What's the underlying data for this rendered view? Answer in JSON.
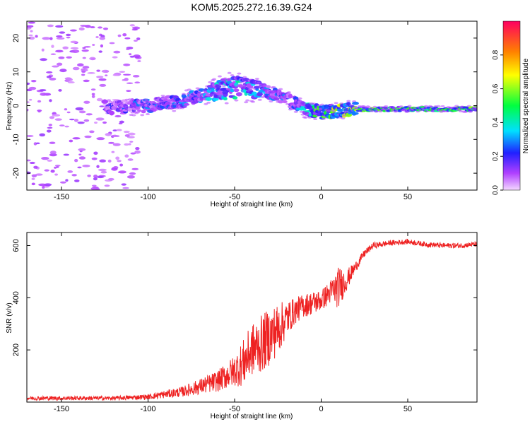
{
  "title": "KOM5.2025.272.16.39.G24",
  "colors": {
    "snr_line": "#ee2222",
    "axis": "#000000",
    "colormap": [
      "#f0c0ff",
      "#b040ff",
      "#2020ff",
      "#00e0ff",
      "#00ff20",
      "#ffff00",
      "#ff8000",
      "#ff0060"
    ]
  },
  "chart_data": [
    {
      "type": "heatmap",
      "title": "",
      "xlabel": "Height of straight line (km)",
      "ylabel": "Frequency (Hz)",
      "xlim": [
        -170,
        90
      ],
      "ylim": [
        -25,
        25
      ],
      "xticks": [
        -150,
        -100,
        -50,
        0,
        50
      ],
      "yticks": [
        -20,
        -10,
        0,
        10,
        20
      ],
      "xtick_labels": [
        "-150",
        "-100",
        "-50",
        "0",
        "50"
      ],
      "ytick_labels": [
        "-20",
        "-10",
        "0",
        "10",
        "20"
      ],
      "colorbar": {
        "label": "Normalized spectral amplitude",
        "range": [
          0,
          1
        ],
        "ticks": [
          0.0,
          0.2,
          0.4,
          0.6,
          0.8
        ],
        "tick_labels": [
          "0.0",
          "0.2",
          "0.4",
          "0.6",
          "0.8"
        ]
      },
      "ridge": {
        "x": [
          -120,
          -100,
          -80,
          -70,
          -60,
          -50,
          -40,
          -30,
          -20,
          -10,
          0,
          10,
          20,
          30,
          50,
          70,
          90
        ],
        "y": [
          -0.5,
          0,
          1.5,
          3,
          4.5,
          5.5,
          5,
          4,
          2,
          -1,
          -2,
          -1.5,
          -1,
          -1,
          -1,
          -1,
          -1
        ],
        "amplitude": [
          0.25,
          0.3,
          0.35,
          0.35,
          0.4,
          0.45,
          0.4,
          0.35,
          0.3,
          0.4,
          0.6,
          0.7,
          0.65,
          0.6,
          0.55,
          0.55,
          0.6
        ]
      },
      "noise_region": {
        "x_range": [
          -170,
          -120
        ],
        "y_range": [
          -25,
          25
        ],
        "amplitude": 0.05
      }
    },
    {
      "type": "line",
      "title": "",
      "xlabel": "Height of straight line (km)",
      "ylabel": "SNR (v/v)",
      "xlim": [
        -170,
        90
      ],
      "ylim": [
        0,
        650
      ],
      "xticks": [
        -150,
        -100,
        -50,
        0,
        50
      ],
      "yticks": [
        200,
        400,
        600
      ],
      "xtick_labels": [
        "-150",
        "-100",
        "-50",
        "0",
        "50"
      ],
      "ytick_labels": [
        "200",
        "400",
        "600"
      ],
      "series": [
        {
          "name": "SNR",
          "x": [
            -170,
            -150,
            -120,
            -100,
            -90,
            -80,
            -70,
            -60,
            -50,
            -45,
            -40,
            -35,
            -30,
            -25,
            -20,
            -15,
            -10,
            -5,
            0,
            5,
            10,
            15,
            20,
            25,
            30,
            40,
            50,
            60,
            70,
            80,
            90
          ],
          "y": [
            15,
            15,
            15,
            20,
            30,
            40,
            60,
            80,
            120,
            150,
            200,
            220,
            250,
            280,
            320,
            350,
            370,
            380,
            390,
            420,
            440,
            470,
            520,
            570,
            600,
            610,
            615,
            605,
            600,
            600,
            605
          ],
          "noise_amplitude": [
            8,
            8,
            8,
            10,
            15,
            20,
            30,
            40,
            60,
            90,
            100,
            110,
            110,
            100,
            70,
            50,
            45,
            45,
            40,
            45,
            80,
            40,
            20,
            15,
            12,
            10,
            10,
            10,
            10,
            10,
            10
          ]
        }
      ]
    }
  ]
}
